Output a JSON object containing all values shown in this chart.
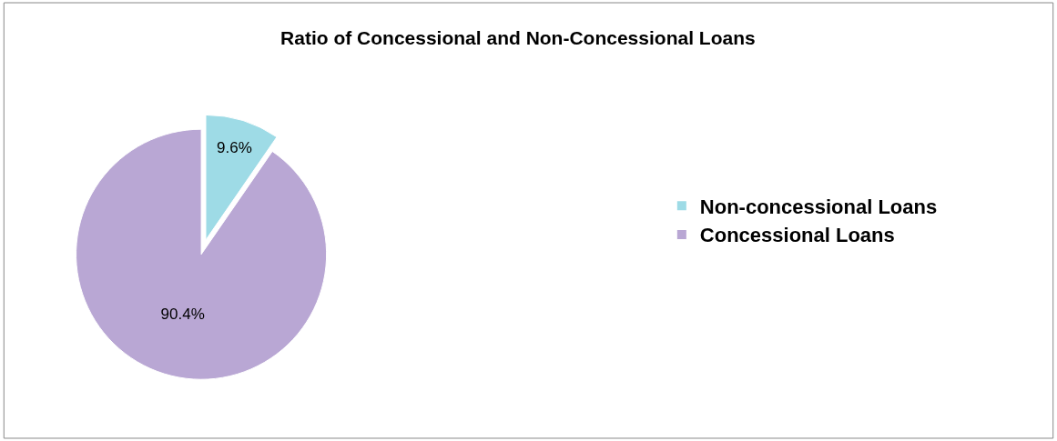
{
  "chart_data": {
    "type": "pie",
    "title": "Ratio of Concessional and Non-Concessional Loans",
    "categories": [
      "Non-concessional Loans",
      "Concessional Loans"
    ],
    "values": [
      9.6,
      90.4
    ],
    "value_labels": [
      "9.6%",
      "90.4%"
    ],
    "colors": [
      "#9edbe6",
      "#b9a7d4"
    ],
    "legend": "right"
  }
}
